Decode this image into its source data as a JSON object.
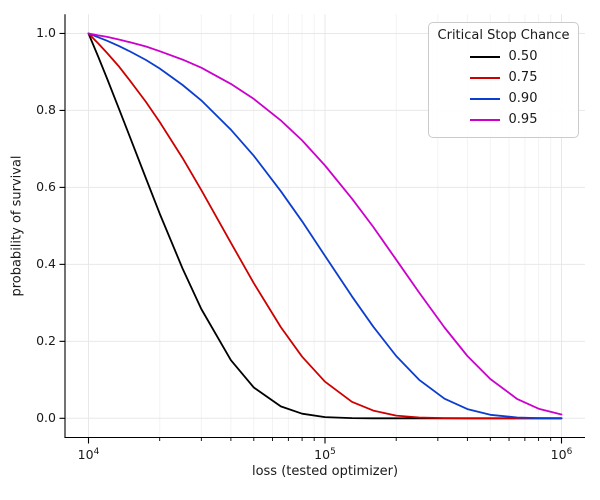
{
  "figure": {
    "background": "#ffffff",
    "xlabel": "loss (tested optimizer)",
    "ylabel": "probability of survival"
  },
  "legend": {
    "title": "Critical Stop Chance"
  },
  "chart_data": {
    "type": "line",
    "title": "",
    "xlabel": "loss (tested optimizer)",
    "ylabel": "probability of survival",
    "x_scale": "log",
    "xlim": [
      10000,
      1000000
    ],
    "ylim": [
      0.0,
      1.0
    ],
    "grid": "both",
    "legend_position": "upper right",
    "legend_title": "Critical Stop Chance",
    "x": [
      10000,
      11000,
      12000,
      13500,
      15000,
      17500,
      20000,
      25000,
      30000,
      40000,
      50000,
      65000,
      80000,
      100000,
      130000,
      160000,
      200000,
      250000,
      320000,
      400000,
      500000,
      650000,
      800000,
      1000000
    ],
    "series": [
      {
        "name": "0.50",
        "color": "#000000",
        "values": [
          1.0,
          0.939,
          0.882,
          0.802,
          0.73,
          0.623,
          0.532,
          0.389,
          0.284,
          0.151,
          0.08,
          0.031,
          0.012,
          0.003,
          0.0005,
          0.0001,
          0.0,
          0.0,
          0.0,
          0.0,
          0.0,
          0.0,
          0.0,
          0.0
        ]
      },
      {
        "name": "0.75",
        "color": "#cd0000",
        "values": [
          1.0,
          0.974,
          0.949,
          0.913,
          0.877,
          0.822,
          0.77,
          0.676,
          0.593,
          0.456,
          0.351,
          0.237,
          0.16,
          0.095,
          0.043,
          0.02,
          0.007,
          0.002,
          0.0005,
          0.0001,
          0.0,
          0.0,
          0.0,
          0.0
        ]
      },
      {
        "name": "0.90",
        "color": "#0b3dcf",
        "values": [
          1.0,
          0.99,
          0.981,
          0.967,
          0.953,
          0.931,
          0.909,
          0.866,
          0.826,
          0.75,
          0.682,
          0.59,
          0.512,
          0.422,
          0.317,
          0.238,
          0.162,
          0.1,
          0.051,
          0.024,
          0.009,
          0.002,
          0.0005,
          0.0001
        ]
      },
      {
        "name": "0.95",
        "color": "#cc00cc",
        "values": [
          1.0,
          0.995,
          0.991,
          0.984,
          0.977,
          0.966,
          0.954,
          0.932,
          0.911,
          0.869,
          0.83,
          0.774,
          0.722,
          0.657,
          0.571,
          0.497,
          0.412,
          0.327,
          0.236,
          0.162,
          0.102,
          0.05,
          0.025,
          0.01
        ]
      }
    ],
    "x_ticks": [
      {
        "value": 10000,
        "base": "10",
        "exp": "4"
      },
      {
        "value": 100000,
        "base": "10",
        "exp": "5"
      },
      {
        "value": 1000000,
        "base": "10",
        "exp": "6"
      }
    ],
    "y_ticks": [
      {
        "value": 0.0,
        "label": "0.0"
      },
      {
        "value": 0.2,
        "label": "0.2"
      },
      {
        "value": 0.4,
        "label": "0.4"
      },
      {
        "value": 0.6,
        "label": "0.6"
      },
      {
        "value": 0.8,
        "label": "0.8"
      },
      {
        "value": 1.0,
        "label": "1.0"
      }
    ]
  }
}
